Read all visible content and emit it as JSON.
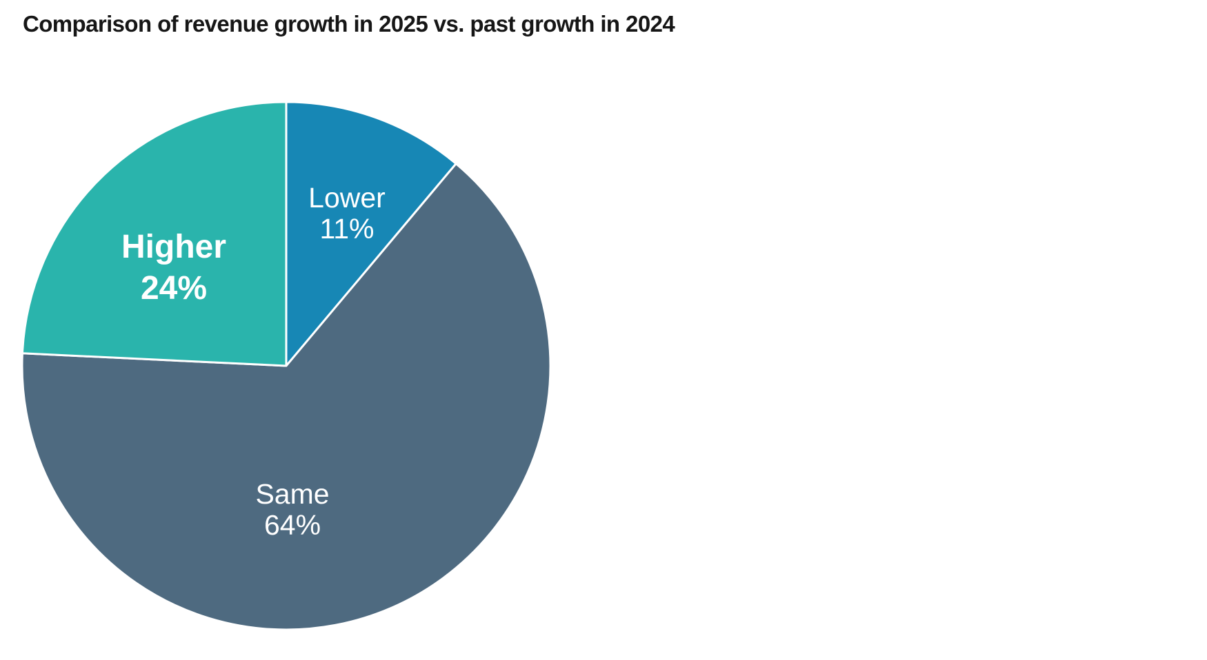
{
  "title": "Comparison of revenue growth in 2025 vs. past growth in 2024",
  "title_color": "#161616",
  "background_color": "#ffffff",
  "chart_data": {
    "type": "pie",
    "title": "Comparison of revenue growth in 2025 vs. past growth in 2024",
    "direction": "clockwise",
    "start_angle_deg": 0,
    "legend": "none",
    "slice_border_color": "#ffffff",
    "label_color": "#ffffff",
    "segments": [
      {
        "label": "Lower",
        "value": 11,
        "display": "11%",
        "color": "#1787b5"
      },
      {
        "label": "Same",
        "value": 64,
        "display": "64%",
        "color": "#4e6a80"
      },
      {
        "label": "Higher",
        "value": 24,
        "display": "24%",
        "color": "#2ab4ac"
      }
    ]
  }
}
